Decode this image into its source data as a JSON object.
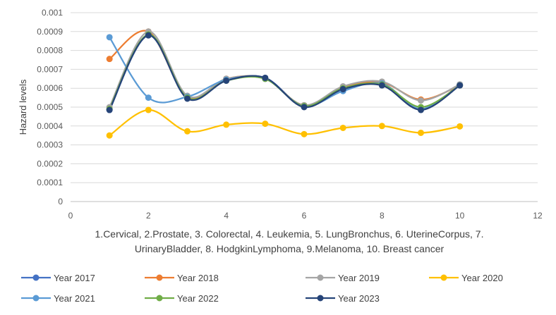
{
  "chart_data": {
    "type": "line",
    "title": "",
    "xlabel": "1.Cervical, 2.Prostate, 3. Colorectal, 4. Leukemia, 5. LungBronchus, 6. UterineCorpus, 7. UrinaryBladder, 8. HodgkinLymphoma, 9.Melanoma, 10. Breast cancer",
    "xlabel_lines": [
      "1.Cervical, 2.Prostate, 3. Colorectal, 4. Leukemia, 5. LungBronchus, 6. UterineCorpus, 7.",
      "UrinaryBladder, 8. HodgkinLymphoma, 9.Melanoma, 10. Breast cancer"
    ],
    "ylabel": "Hazard levels",
    "xlim": [
      0,
      12
    ],
    "ylim": [
      0,
      0.001
    ],
    "xticks": [
      "0",
      "2",
      "4",
      "6",
      "8",
      "10",
      "12"
    ],
    "yticks": [
      "0",
      "0.0001",
      "0.0002",
      "0.0003",
      "0.0004",
      "0.0005",
      "0.0006",
      "0.0007",
      "0.0008",
      "0.0009",
      "0.001"
    ],
    "x": [
      1,
      2,
      3,
      4,
      5,
      6,
      7,
      8,
      9,
      10
    ],
    "legend_position": "bottom",
    "series": [
      {
        "name": "Year 2017",
        "color": "#4472C4",
        "values": [
          0.000485,
          0.00088,
          0.000548,
          0.00064,
          0.000655,
          0.000505,
          0.000595,
          0.00062,
          0.00049,
          0.00062
        ]
      },
      {
        "name": "Year 2018",
        "color": "#ED7D31",
        "values": [
          0.000755,
          0.0009,
          0.000555,
          0.00065,
          0.00065,
          0.00051,
          0.000605,
          0.00063,
          0.00054,
          0.000615
        ]
      },
      {
        "name": "Year 2019",
        "color": "#A5A5A5",
        "values": [
          0.0005,
          0.0009,
          0.00056,
          0.00065,
          0.00065,
          0.00051,
          0.00061,
          0.000635,
          0.000535,
          0.00062
        ]
      },
      {
        "name": "Year 2020",
        "color": "#FFC000",
        "values": [
          0.00035,
          0.000485,
          0.000372,
          0.000407,
          0.000412,
          0.000357,
          0.00039,
          0.0004,
          0.000364,
          0.000398
        ]
      },
      {
        "name": "Year 2021",
        "color": "#5B9BD5",
        "values": [
          0.00087,
          0.00055,
          0.000555,
          0.000645,
          0.00065,
          0.000505,
          0.000585,
          0.000625,
          0.00049,
          0.000615
        ]
      },
      {
        "name": "Year 2022",
        "color": "#70AD47",
        "values": [
          0.00049,
          0.000885,
          0.00055,
          0.00064,
          0.00065,
          0.000505,
          0.0006,
          0.00062,
          0.0005,
          0.000615
        ]
      },
      {
        "name": "Year 2023",
        "color": "#264478",
        "values": [
          0.000485,
          0.00088,
          0.000545,
          0.00064,
          0.000655,
          0.0005,
          0.000595,
          0.000615,
          0.000485,
          0.000615
        ]
      }
    ]
  }
}
